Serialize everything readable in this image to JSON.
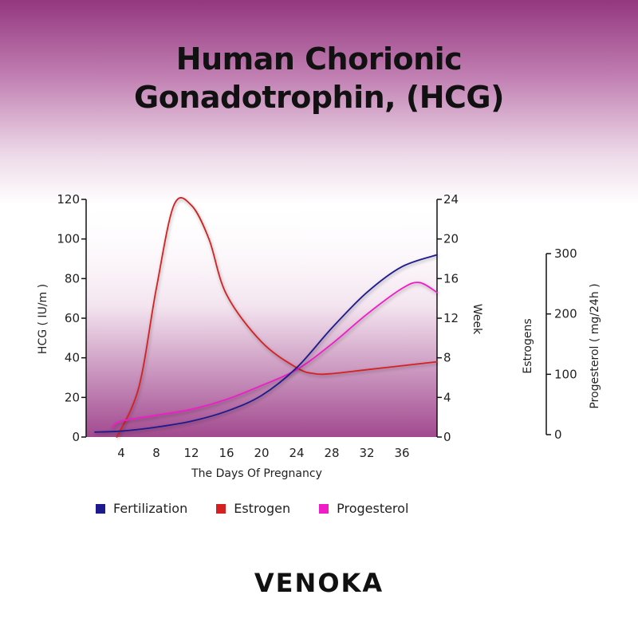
{
  "title_line1": "Human Chorionic",
  "title_line2": "Gonadotrophin, (HCG)",
  "brand": "VENOKA",
  "colors": {
    "fertilization": "#1c1a8c",
    "estrogen": "#d42020",
    "progesterol": "#ef1cc8",
    "plot_fill_top": "#ffffff",
    "plot_fill_bottom": "#a2498f"
  },
  "chart_data": {
    "type": "line",
    "xlabel": "The Days Of Pregnancy",
    "ylabel_left": "HCG ( IU/m )",
    "ylabel_right": "Week",
    "ylabel_far_right_1": "Estrogens",
    "ylabel_far_right_2": "Progesterol ( mg/24h )",
    "x_ticks": [
      "4",
      "8",
      "12",
      "16",
      "20",
      "24",
      "28",
      "32",
      "36"
    ],
    "y_left_ticks": [
      "0",
      "20",
      "40",
      "60",
      "80",
      "100",
      "120"
    ],
    "y_right_ticks": [
      "0",
      "4",
      "8",
      "12",
      "16",
      "20",
      "24"
    ],
    "y_far_right_ticks": [
      "0",
      "100",
      "200",
      "300"
    ],
    "xlim": [
      0,
      40
    ],
    "ylim_left": [
      0,
      120
    ],
    "ylim_right": [
      0,
      24
    ],
    "ylim_far_right": [
      0,
      300
    ],
    "legend": [
      "Fertilization",
      "Estrogen",
      "Progesterol"
    ],
    "series": [
      {
        "name": "Fertilization",
        "x": [
          1,
          4,
          8,
          12,
          16,
          20,
          24,
          28,
          32,
          36,
          40
        ],
        "y": [
          2.5,
          3,
          5,
          8,
          13,
          21,
          35,
          55,
          73,
          86,
          92
        ]
      },
      {
        "name": "Estrogen",
        "x": [
          3.5,
          6,
          8,
          10,
          12,
          14,
          16,
          20,
          24,
          26,
          28,
          32,
          36,
          40
        ],
        "y": [
          0,
          25,
          75,
          117,
          117,
          100,
          72,
          48,
          35,
          32,
          32,
          34,
          36,
          38
        ]
      },
      {
        "name": "Progesterol",
        "x": [
          3,
          4,
          8,
          12,
          16,
          20,
          24,
          28,
          32,
          36,
          38,
          40
        ],
        "y": [
          5,
          8,
          11,
          14,
          19,
          26,
          34,
          47,
          62,
          75,
          78,
          73
        ]
      }
    ]
  }
}
